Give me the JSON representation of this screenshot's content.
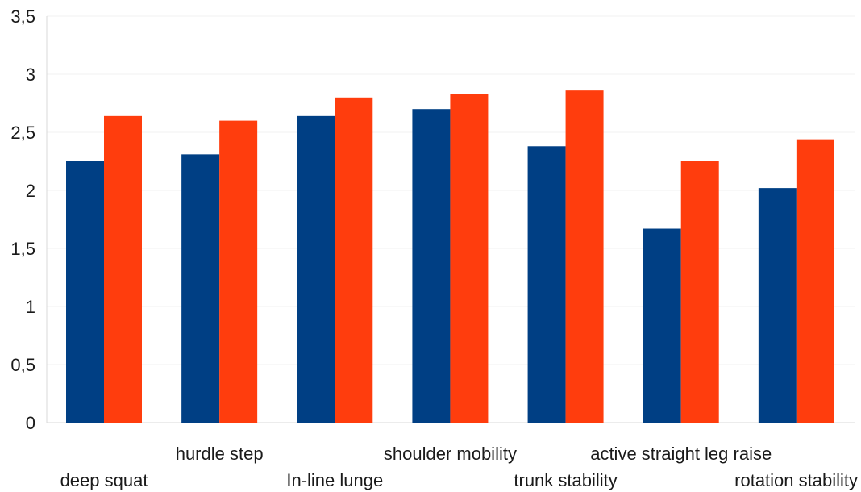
{
  "chart_data": {
    "type": "bar",
    "title": "",
    "xlabel": "",
    "ylabel": "",
    "ylim": [
      0,
      3.5
    ],
    "yticks": [
      "0",
      "0,5",
      "1",
      "1,5",
      "2",
      "2,5",
      "3",
      "3,5"
    ],
    "grid": false,
    "legend": "none",
    "categories": [
      "deep squat",
      "hurdle step",
      "In-line lunge",
      "shoulder mobility",
      "trunk stability",
      "active straight leg raise",
      "rotation stability"
    ],
    "series": [
      {
        "color": "#003f84",
        "values": [
          2.25,
          2.31,
          2.64,
          2.7,
          2.38,
          1.67,
          2.02
        ]
      },
      {
        "color": "#ff3d0d",
        "values": [
          2.64,
          2.6,
          2.8,
          2.83,
          2.86,
          2.25,
          2.44
        ]
      }
    ]
  }
}
